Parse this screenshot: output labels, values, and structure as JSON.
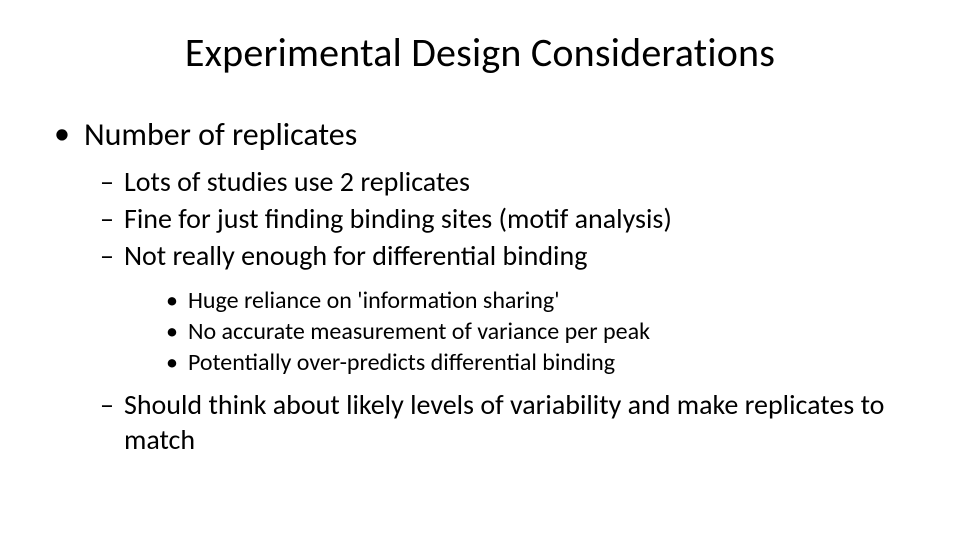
{
  "slide": {
    "title": "Experimental Design Considerations",
    "title_fontsize": 40,
    "background_color": "#ffffff",
    "text_color": "#000000",
    "font_family": "Calibri",
    "bullets": {
      "l1_marker": "•",
      "l2_marker": "–",
      "l3_marker": "•",
      "l1_fontsize": 32,
      "l2_fontsize": 28,
      "l3_fontsize": 24,
      "level1": {
        "text": "Number of replicates",
        "children": [
          {
            "text": "Lots of studies use 2 replicates"
          },
          {
            "text": "Fine for just finding binding sites (motif analysis)"
          },
          {
            "text": "Not really enough for differential binding",
            "children": [
              {
                "text": "Huge reliance on 'information sharing'"
              },
              {
                "text": "No accurate measurement of variance per peak"
              },
              {
                "text": "Potentially over-predicts differential binding"
              }
            ]
          },
          {
            "text": "Should think about likely levels of variability and make replicates to match"
          }
        ]
      }
    }
  }
}
